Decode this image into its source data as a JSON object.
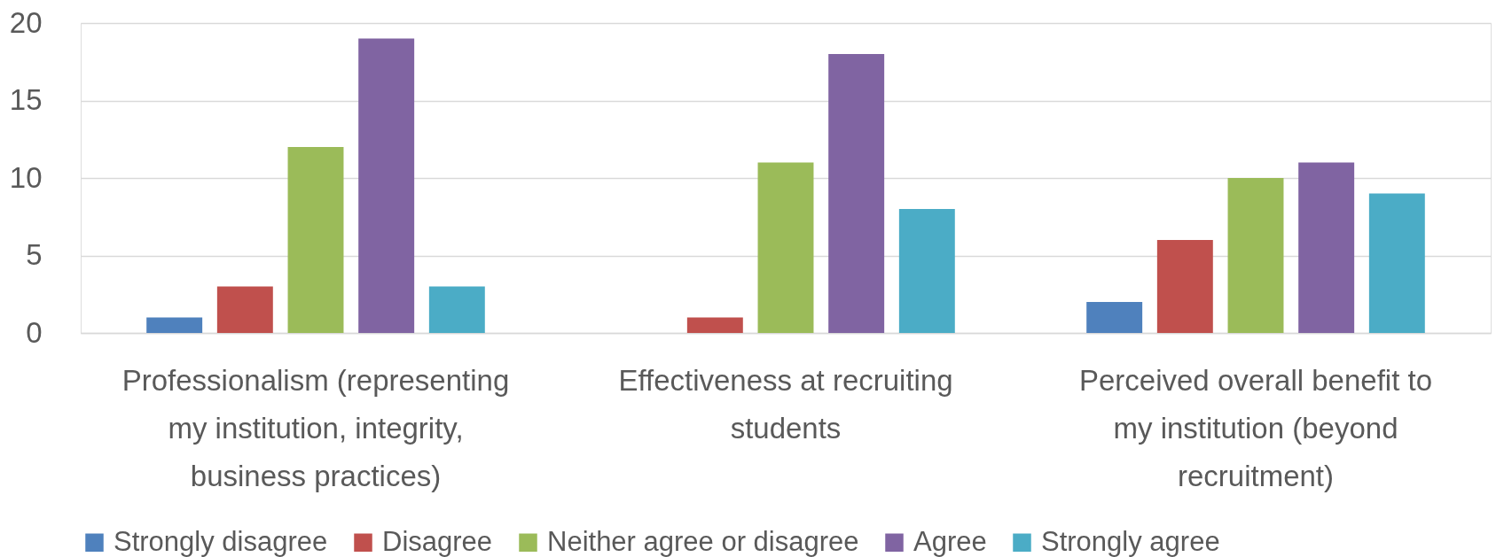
{
  "chart_data": {
    "type": "bar",
    "categories": [
      "Professionalism (representing my institution, integrity, business practices)",
      "Effectiveness at recruiting students",
      "Perceived overall benefit to my institution (beyond recruitment)"
    ],
    "series": [
      {
        "name": "Strongly disagree",
        "color": "#4f81bd",
        "values": [
          1,
          0,
          2
        ]
      },
      {
        "name": "Disagree",
        "color": "#c0504d",
        "values": [
          3,
          1,
          6
        ]
      },
      {
        "name": "Neither agree or disagree",
        "color": "#9bbb59",
        "values": [
          12,
          11,
          10
        ]
      },
      {
        "name": "Agree",
        "color": "#8064a2",
        "values": [
          19,
          18,
          11
        ]
      },
      {
        "name": "Strongly agree",
        "color": "#4bacc6",
        "values": [
          3,
          8,
          9
        ]
      }
    ],
    "ylim": [
      0,
      20
    ],
    "yticks": [
      0,
      5,
      10,
      15,
      20
    ],
    "grid": "y",
    "legend": "bottom"
  }
}
